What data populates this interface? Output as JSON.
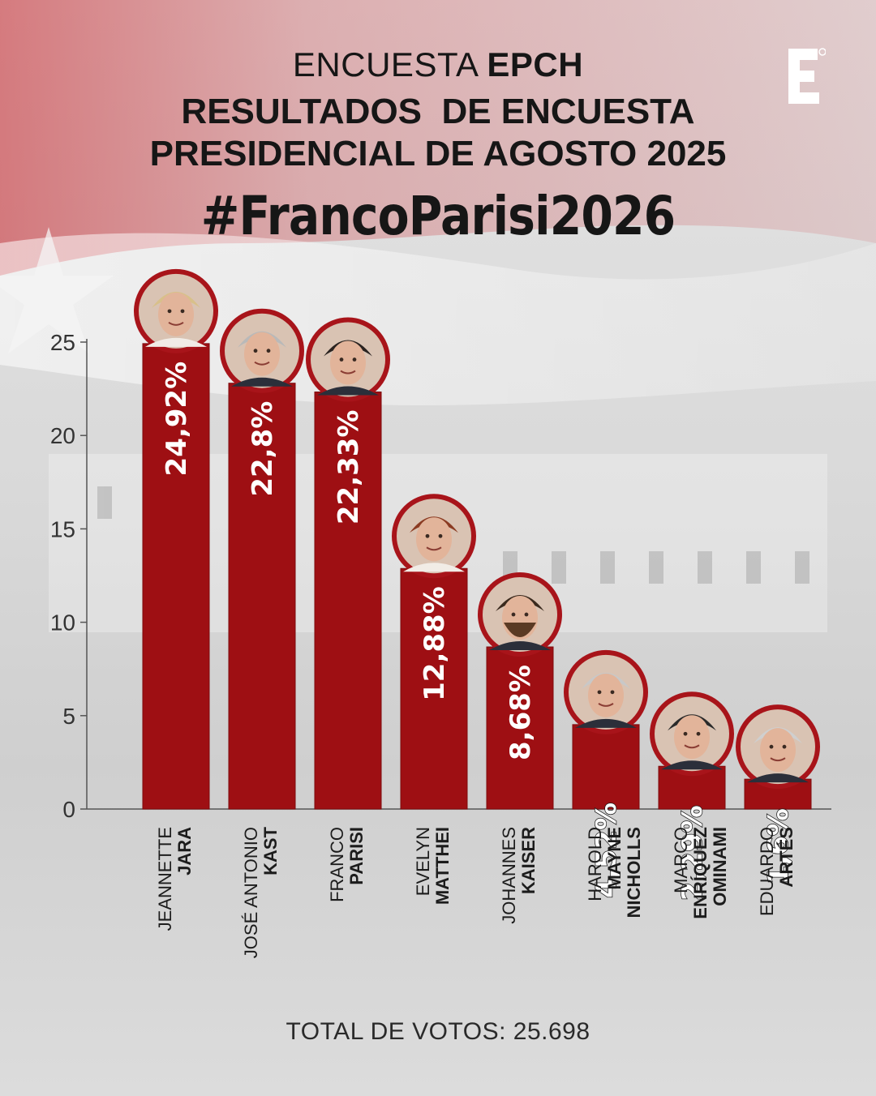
{
  "header": {
    "line1_prefix": "ENCUESTA ",
    "line1_bold": "EPCH",
    "line2": "RESULTADOS  DE ENCUESTA",
    "line3": "PRESIDENCIAL DE AGOSTO 2025",
    "hashtag": "#FrancoParisi2026"
  },
  "logo": {
    "letter": "E"
  },
  "footer": {
    "total_label": "TOTAL DE VOTOS: 25.698"
  },
  "colors": {
    "bar": "#9e0f13",
    "bar_edge": "#7d0b0e",
    "accent_flag": "#c9252c",
    "text": "#161616"
  },
  "chart_data": {
    "type": "bar",
    "ylim": [
      0,
      25
    ],
    "yticks": [
      "0",
      "5",
      "10",
      "15",
      "20",
      "25"
    ],
    "values": [
      24.92,
      22.8,
      22.33,
      12.88,
      8.68,
      4.52,
      2.29,
      1.6
    ],
    "value_labels": [
      "24,92%",
      "22,8%",
      "22,33%",
      "12,88%",
      "8,68%",
      "4,52%",
      "2,29%",
      "1,6%"
    ],
    "candidates": [
      {
        "first": "JEANNETTE",
        "last": "JARA",
        "portrait": "woman-short-blond-hair"
      },
      {
        "first": "JOSÉ ANTONIO",
        "last": "KAST",
        "portrait": "man-grey-hair-suit"
      },
      {
        "first": "FRANCO",
        "last": "PARISI",
        "portrait": "man-dark-hair-suit"
      },
      {
        "first": "EVELYN",
        "last": "MATTHEI",
        "portrait": "woman-red-brown-hair"
      },
      {
        "first": "JOHANNES",
        "last": "KAISER",
        "portrait": "man-beard"
      },
      {
        "first": "HAROLD",
        "last": "MAYNE NICHOLLS",
        "portrait": "man-grey-hair"
      },
      {
        "first": "MARCO",
        "last": "ENRÍQUEZ OMINAMI",
        "portrait": "man-black-hair"
      },
      {
        "first": "EDUARDO",
        "last": "ARTÉS",
        "portrait": "elderly-man"
      }
    ]
  }
}
